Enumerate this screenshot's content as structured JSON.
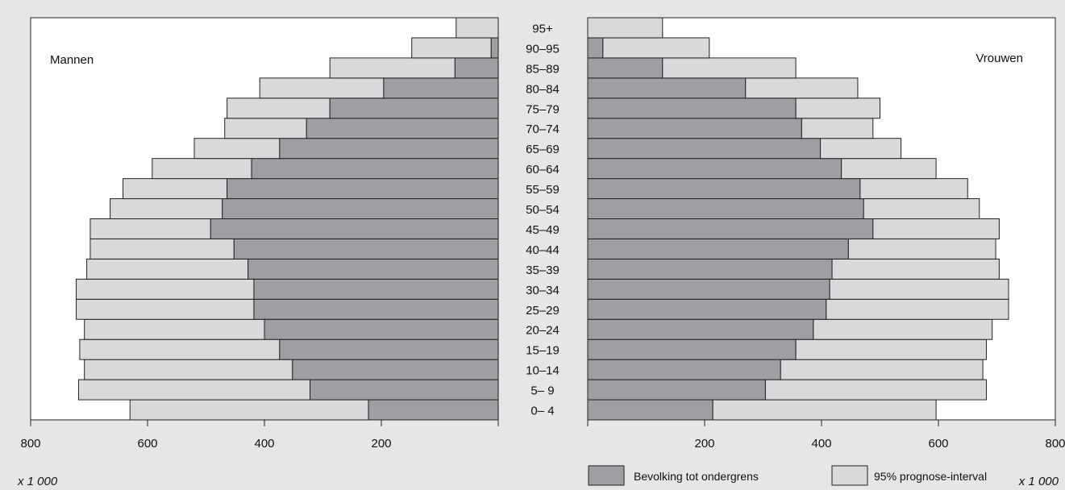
{
  "chart_data": {
    "type": "bar",
    "subtype": "population-pyramid",
    "x_axis_max": 800,
    "x_ticks": [
      800,
      600,
      400,
      200
    ],
    "x_ticks_right": [
      200,
      400,
      600,
      800
    ],
    "unit_label": "x 1 000",
    "categories": [
      "0– 4",
      "5– 9",
      "10–14",
      "15–19",
      "20–24",
      "25–29",
      "30–34",
      "35–39",
      "40–44",
      "45–49",
      "50–54",
      "55–59",
      "60–64",
      "65–69",
      "70–74",
      "75–79",
      "80–84",
      "85–89",
      "90–95",
      "95+"
    ],
    "men": {
      "label": "Mannen",
      "lower_bound": [
        222,
        322,
        352,
        374,
        400,
        418,
        418,
        428,
        452,
        492,
        472,
        464,
        422,
        374,
        328,
        288,
        196,
        74,
        12,
        0
      ],
      "interval_upper": [
        630,
        718,
        708,
        716,
        708,
        722,
        722,
        704,
        698,
        698,
        664,
        642,
        592,
        520,
        468,
        464,
        408,
        288,
        148,
        72
      ]
    },
    "women": {
      "label": "Vrouwen",
      "lower_bound": [
        214,
        304,
        330,
        356,
        386,
        408,
        414,
        418,
        446,
        488,
        472,
        466,
        434,
        398,
        366,
        356,
        270,
        128,
        26,
        0
      ],
      "interval_upper": [
        596,
        682,
        676,
        682,
        692,
        720,
        720,
        704,
        698,
        704,
        670,
        650,
        596,
        536,
        488,
        500,
        462,
        356,
        208,
        128
      ]
    },
    "legend": [
      {
        "name": "Bevolking tot ondergrens",
        "color": "#9e9ea3"
      },
      {
        "name": "95% prognose-interval",
        "color": "#d9d9db"
      }
    ],
    "legend_position": "bottom-right",
    "colors": {
      "lower_bound": "#9e9ea3",
      "interval": "#d9d9db",
      "plot_background": "#ffffff",
      "page_background": "#e6e6e6"
    }
  }
}
